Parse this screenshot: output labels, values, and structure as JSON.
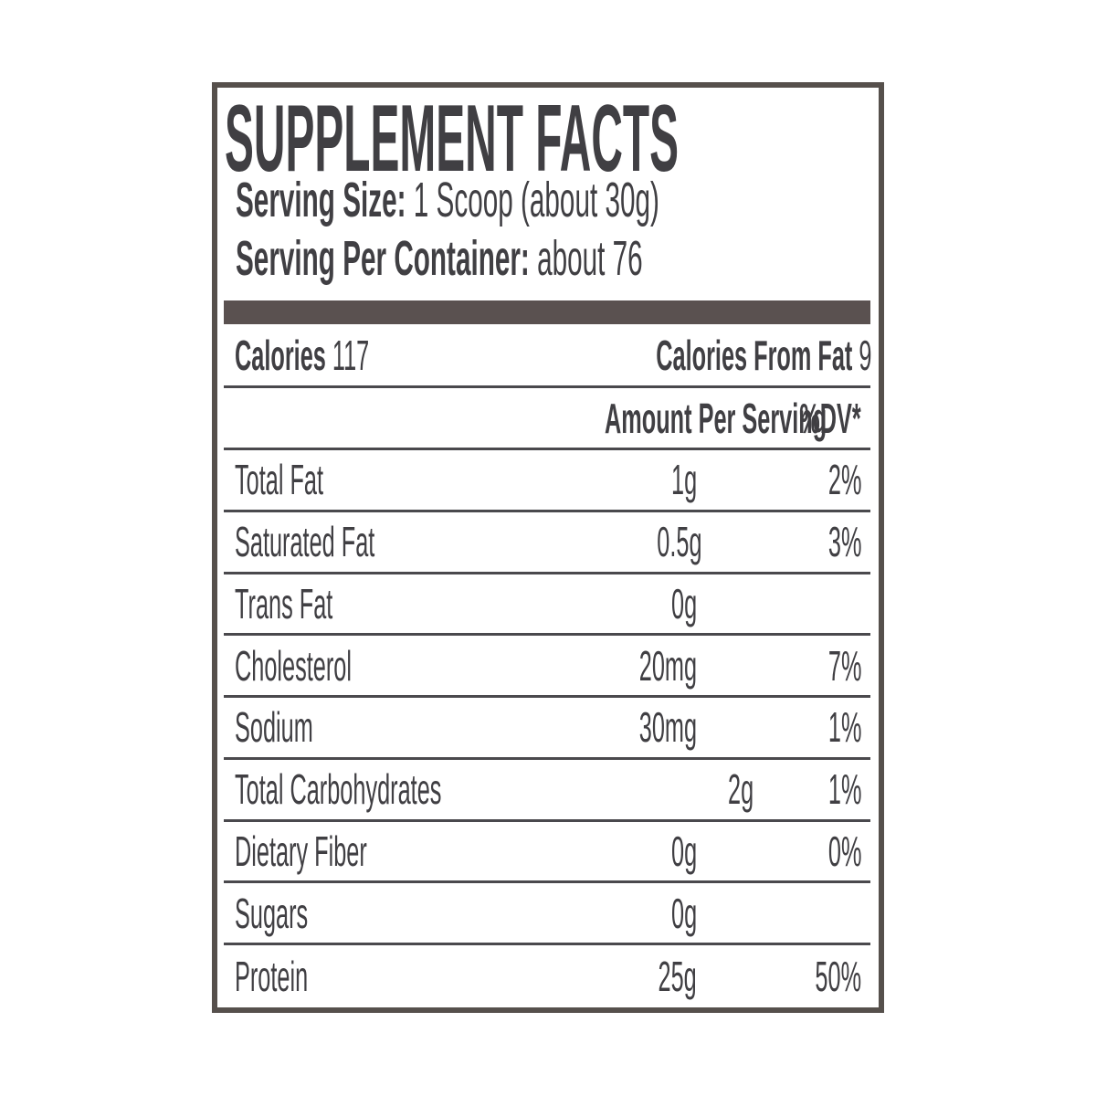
{
  "label": {
    "title": "SUPPLEMENT FACTS",
    "serving_size": {
      "label": "Serving Size:",
      "value": "1 Scoop (about 30g)"
    },
    "servings_per_container": {
      "label": "Serving Per Container:",
      "value": "about 76"
    },
    "calories": {
      "label": "Calories",
      "value": "117"
    },
    "calories_from_fat": {
      "label": "Calories From Fat",
      "value": "9"
    },
    "columns": {
      "amount": "Amount Per Serving",
      "dv": "%DV*"
    },
    "rows": [
      {
        "name": "Total Fat",
        "amount": "1g",
        "dv": "2%"
      },
      {
        "name": "Saturated Fat",
        "amount": "0.5g",
        "dv": "3%"
      },
      {
        "name": "Trans Fat",
        "amount": "0g",
        "dv": ""
      },
      {
        "name": "Cholesterol",
        "amount": "20mg",
        "dv": "7%"
      },
      {
        "name": "Sodium",
        "amount": "30mg",
        "dv": "1%"
      },
      {
        "name": "Total Carbohydrates",
        "amount": "2g",
        "dv": "1%"
      },
      {
        "name": "Dietary Fiber",
        "amount": "0g",
        "dv": "0%"
      },
      {
        "name": "Sugars",
        "amount": "0g",
        "dv": ""
      },
      {
        "name": "Protein",
        "amount": "25g",
        "dv": "50%"
      }
    ],
    "colors": {
      "border": "#56504c",
      "bar": "#5a5150",
      "divider": "#4a494d",
      "text": "#403f43",
      "background": "#ffffff"
    }
  }
}
